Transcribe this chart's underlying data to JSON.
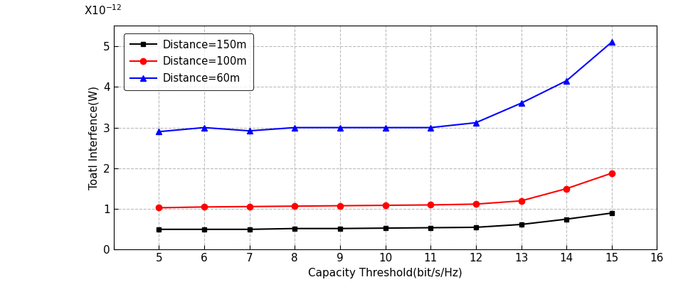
{
  "x": [
    5,
    6,
    7,
    8,
    9,
    10,
    11,
    12,
    13,
    14,
    15
  ],
  "black_150m": [
    0.5,
    0.5,
    0.5,
    0.52,
    0.52,
    0.53,
    0.54,
    0.55,
    0.62,
    0.75,
    0.9
  ],
  "red_100m": [
    1.03,
    1.05,
    1.06,
    1.07,
    1.08,
    1.09,
    1.1,
    1.12,
    1.2,
    1.5,
    1.88
  ],
  "blue_60m": [
    2.9,
    3.0,
    2.92,
    3.0,
    3.0,
    3.0,
    3.0,
    3.12,
    3.6,
    4.15,
    5.1
  ],
  "xlabel": "Capacity Threshold(bit/s/Hz)",
  "ylabel": "Toatl Interfence(W)",
  "legend_150": "Distance=150m",
  "legend_100": "Distance=100m",
  "legend_60": "Distance=60m",
  "xlim": [
    4,
    16
  ],
  "ylim": [
    0,
    5.5
  ],
  "xticks": [
    4,
    5,
    6,
    7,
    8,
    9,
    10,
    11,
    12,
    13,
    14,
    15,
    16
  ],
  "yticks": [
    0,
    1,
    2,
    3,
    4,
    5
  ],
  "scale_label": "X10$^{-12}$",
  "black_color": "#000000",
  "red_color": "#ff0000",
  "blue_color": "#0000ff",
  "grid_color": "#bbbbbb",
  "bg_color": "#ffffff"
}
